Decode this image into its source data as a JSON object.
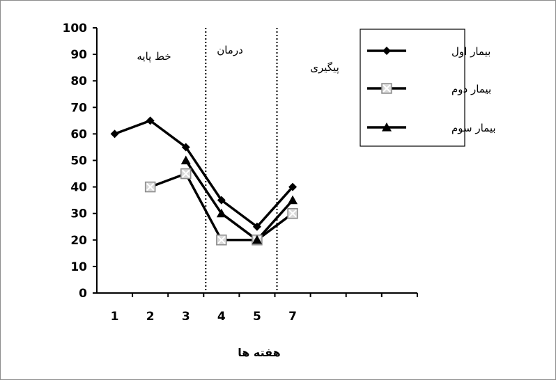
{
  "chart_data": {
    "type": "line",
    "xlabel": "هفته ها",
    "ylabel": "",
    "ylim": [
      0,
      100
    ],
    "yticks": [
      0,
      10,
      20,
      30,
      40,
      50,
      60,
      70,
      80,
      90,
      100
    ],
    "x_tick_labels": [
      "1",
      "2",
      "3",
      "4",
      "5",
      "7"
    ],
    "phases": [
      {
        "label": "خط پایه"
      },
      {
        "label": "درمان"
      },
      {
        "label": "پیگیری"
      }
    ],
    "phase_boundaries_after_category": [
      3,
      5
    ],
    "legend_position": "top-right",
    "series": [
      {
        "name": "بیمار اول",
        "marker": "diamond",
        "color": "#000000",
        "values": [
          60,
          65,
          55,
          35,
          25,
          40
        ]
      },
      {
        "name": "بیمار دوم",
        "marker": "square-x",
        "color": "#000000",
        "values": [
          null,
          40,
          45,
          20,
          20,
          30
        ]
      },
      {
        "name": "بیمار سوم",
        "marker": "triangle",
        "color": "#000000",
        "values": [
          null,
          null,
          50,
          30,
          20,
          35
        ]
      }
    ]
  }
}
